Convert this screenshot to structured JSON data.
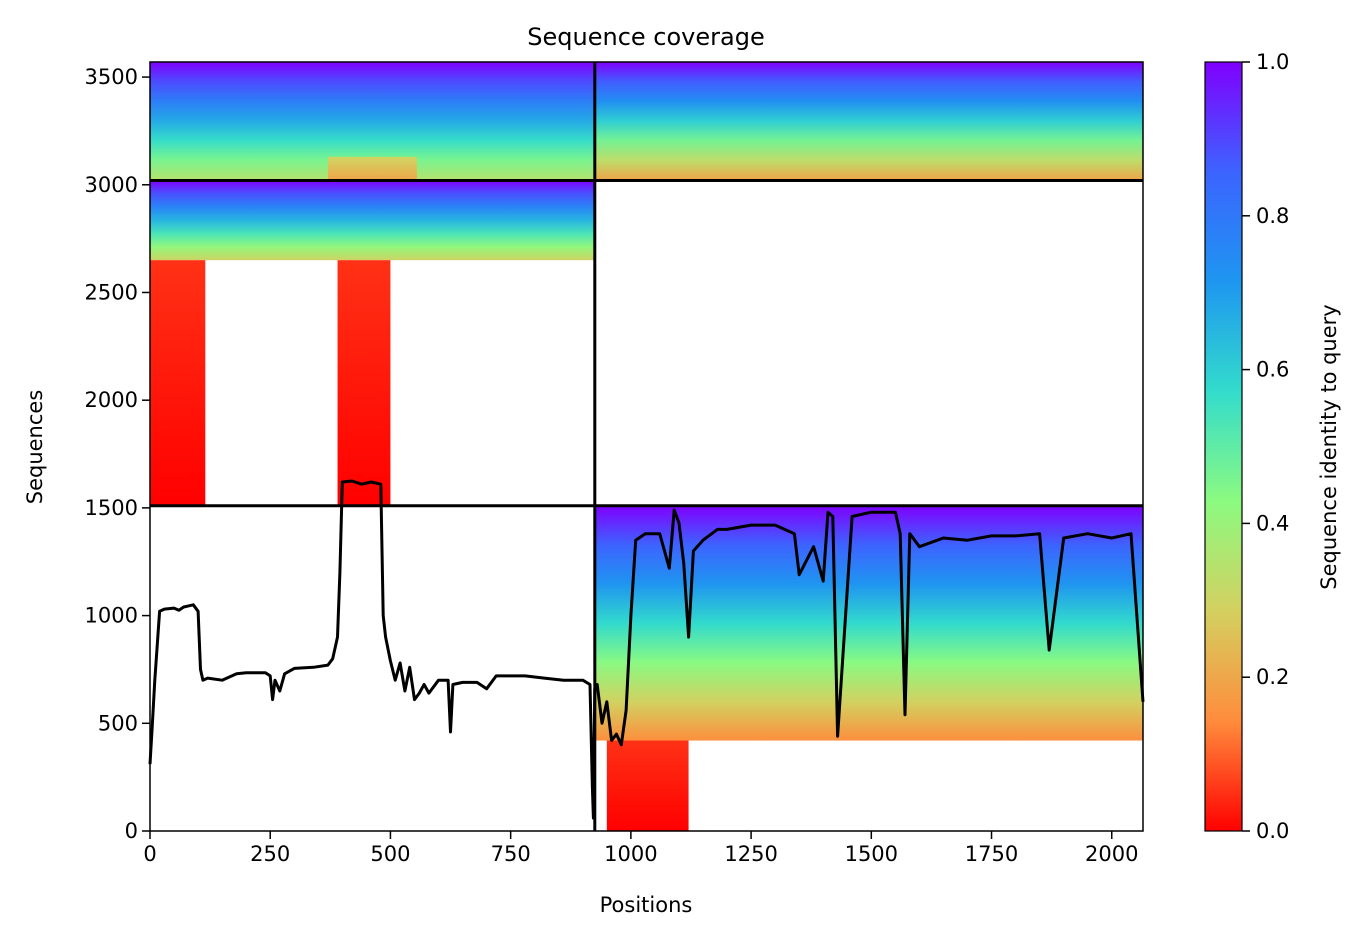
{
  "chart_data": {
    "type": "heatmap",
    "title": "Sequence coverage",
    "xlabel": "Positions",
    "ylabel": "Sequences",
    "xlim": [
      0,
      2065
    ],
    "ylim": [
      0,
      3570
    ],
    "xticks": [
      0,
      250,
      500,
      750,
      1000,
      1250,
      1500,
      1750,
      2000
    ],
    "yticks": [
      0,
      500,
      1000,
      1500,
      2000,
      2500,
      3000,
      3500
    ],
    "grid": false,
    "legend": "none",
    "colorbar": {
      "label": "Sequence identity to query",
      "range": [
        0.0,
        1.0
      ],
      "ticks": [
        "0.0",
        "0.2",
        "0.4",
        "0.6",
        "0.8",
        "1.0"
      ],
      "colormap": [
        "#ff0000",
        "#ff8c3c",
        "#d4d060",
        "#8cfa80",
        "#33dccc",
        "#1e96f0",
        "#3c64ff",
        "#8000ff"
      ]
    },
    "block_boundaries": {
      "x": 925,
      "y": [
        1510,
        3020
      ]
    },
    "coverage_blocks": [
      {
        "name": "region-1-set-1",
        "x": [
          0,
          925
        ],
        "y": [
          3025,
          3570
        ],
        "identity_top": 1.0,
        "identity_bottom": 0.35
      },
      {
        "name": "region-1-set-1-low",
        "x": [
          370,
          555
        ],
        "y": [
          3025,
          3130
        ],
        "identity_top": 0.3,
        "identity_bottom": 0.2
      },
      {
        "name": "region-2-set-1",
        "x": [
          925,
          2065
        ],
        "y": [
          3025,
          3570
        ],
        "identity_top": 1.0,
        "identity_bottom": 0.2
      },
      {
        "name": "region-1-set-2",
        "x": [
          0,
          925
        ],
        "y": [
          2650,
          3020
        ],
        "identity_top": 1.0,
        "identity_bottom": 0.3
      },
      {
        "name": "region-1-set-2-band-a",
        "x": [
          0,
          115
        ],
        "y": [
          1510,
          2650
        ],
        "identity_top": 0.05,
        "identity_bottom": 0.0
      },
      {
        "name": "region-1-set-2-band-b",
        "x": [
          390,
          500
        ],
        "y": [
          1510,
          2650
        ],
        "identity_top": 0.05,
        "identity_bottom": 0.0
      },
      {
        "name": "region-2-set-3",
        "x": [
          925,
          2065
        ],
        "y": [
          420,
          1510
        ],
        "identity_top": 1.0,
        "identity_bottom": 0.15
      },
      {
        "name": "region-2-set-3-tail",
        "x": [
          950,
          1120
        ],
        "y": [
          0,
          420
        ],
        "identity_top": 0.05,
        "identity_bottom": 0.0
      }
    ],
    "series": [
      {
        "name": "",
        "x": [
          0,
          5,
          10,
          20,
          30,
          50,
          60,
          70,
          80,
          90,
          100,
          105,
          110,
          120,
          150,
          180,
          200,
          240,
          250,
          255,
          260,
          270,
          280,
          300,
          340,
          370,
          380,
          390,
          395,
          400,
          420,
          440,
          460,
          480,
          485,
          490,
          500,
          510,
          520,
          530,
          540,
          550,
          560,
          570,
          580,
          600,
          620,
          625,
          630,
          650,
          680,
          700,
          720,
          750,
          780,
          820,
          860,
          900,
          915,
          920,
          922,
          925,
          930,
          940,
          950,
          960,
          970,
          980,
          990,
          1000,
          1010,
          1030,
          1060,
          1080,
          1090,
          1100,
          1110,
          1120,
          1130,
          1150,
          1180,
          1200,
          1250,
          1300,
          1340,
          1350,
          1380,
          1400,
          1410,
          1420,
          1430,
          1460,
          1500,
          1550,
          1560,
          1570,
          1580,
          1600,
          1650,
          1700,
          1750,
          1800,
          1850,
          1870,
          1900,
          1950,
          2000,
          2040,
          2065
        ],
        "y": [
          310,
          500,
          700,
          1020,
          1030,
          1035,
          1025,
          1040,
          1045,
          1050,
          1020,
          750,
          700,
          710,
          700,
          730,
          735,
          735,
          720,
          610,
          700,
          650,
          730,
          755,
          760,
          770,
          800,
          900,
          1200,
          1620,
          1625,
          1610,
          1620,
          1610,
          1000,
          900,
          790,
          700,
          780,
          650,
          760,
          610,
          640,
          680,
          640,
          700,
          700,
          460,
          680,
          690,
          690,
          660,
          720,
          720,
          720,
          710,
          700,
          700,
          680,
          200,
          60,
          660,
          680,
          500,
          600,
          420,
          450,
          400,
          560,
          1000,
          1350,
          1380,
          1380,
          1220,
          1490,
          1430,
          1240,
          900,
          1300,
          1350,
          1400,
          1400,
          1420,
          1420,
          1380,
          1190,
          1320,
          1160,
          1480,
          1460,
          440,
          1460,
          1480,
          1480,
          1380,
          540,
          1380,
          1320,
          1360,
          1350,
          1370,
          1370,
          1380,
          840,
          1360,
          1380,
          1360,
          1380,
          600
        ]
      }
    ]
  }
}
